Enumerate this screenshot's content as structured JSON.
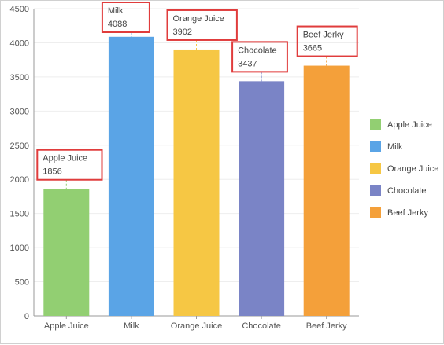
{
  "chart_data": {
    "type": "bar",
    "categories": [
      "Apple Juice",
      "Milk",
      "Orange Juice",
      "Chocolate",
      "Beef Jerky"
    ],
    "values": [
      1856,
      4088,
      3902,
      3437,
      3665
    ],
    "colors": [
      "#92cf72",
      "#5aa4e6",
      "#f6c744",
      "#7a84c6",
      "#f4a03a"
    ],
    "ylim": [
      0,
      4500
    ],
    "yticks": [
      0,
      500,
      1000,
      1500,
      2000,
      2500,
      3000,
      3500,
      4000,
      4500
    ],
    "legend": "right",
    "grid": true,
    "data_labels": true,
    "title": "",
    "xlabel": "",
    "ylabel": ""
  }
}
